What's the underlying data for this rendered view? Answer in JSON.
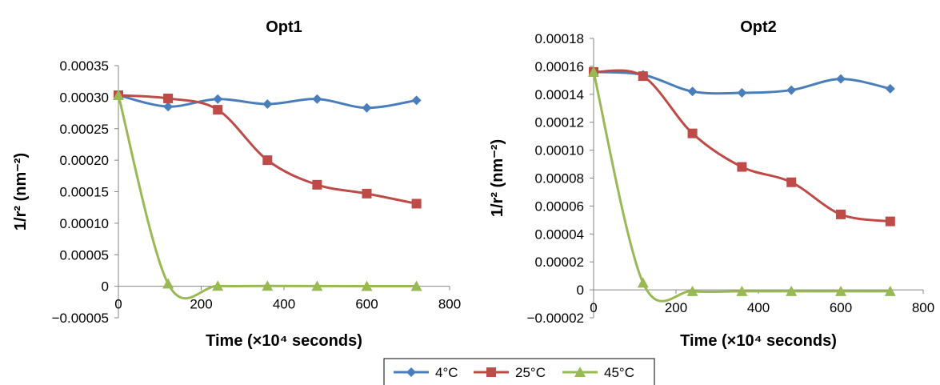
{
  "legend": [
    {
      "label": "4°C",
      "color": "#4a7ebb",
      "marker": "diamond"
    },
    {
      "label": "25°C",
      "color": "#be4b48",
      "marker": "square"
    },
    {
      "label": "45°C",
      "color": "#98b954",
      "marker": "triangle"
    }
  ],
  "chart_data": [
    {
      "type": "line",
      "title": "Opt1",
      "ylabel_main": "1/r² (nm⁻²)",
      "xlabel": "Time (×10⁴ seconds)",
      "xlim": [
        0,
        800
      ],
      "ylim": [
        -5e-05,
        0.00035
      ],
      "xticks": [
        "0",
        "200",
        "400",
        "600",
        "800"
      ],
      "yticks": [
        "−0.00005",
        "0",
        "0.00005",
        "0.00010",
        "0.00015",
        "0.00020",
        "0.00025",
        "0.00030",
        "0.00035"
      ],
      "x": [
        0,
        120,
        240,
        360,
        480,
        600,
        720
      ],
      "series": [
        {
          "name": "4°C",
          "values": [
            0.000303,
            0.000285,
            0.000297,
            0.000289,
            0.000297,
            0.000283,
            0.000295
          ]
        },
        {
          "name": "25°C",
          "values": [
            0.000303,
            0.000298,
            0.00028,
            0.0002,
            0.000161,
            0.000147,
            0.000131
          ]
        },
        {
          "name": "45°C",
          "values": [
            0.000303,
            4e-06,
            5e-07,
            4e-07,
            3e-07,
            2e-07,
            2e-07
          ]
        }
      ]
    },
    {
      "type": "line",
      "title": "Opt2",
      "ylabel_main": "1/r² (nm⁻²)",
      "xlabel": "Time (×10⁴ seconds)",
      "xlim": [
        0,
        800
      ],
      "ylim": [
        -2e-05,
        0.00018
      ],
      "xticks": [
        "0",
        "200",
        "400",
        "600",
        "800"
      ],
      "yticks": [
        "−0.00002",
        "0",
        "0.00002",
        "0.00004",
        "0.00006",
        "0.00008",
        "0.00010",
        "0.00012",
        "0.00014",
        "0.00016",
        "0.00018"
      ],
      "x": [
        0,
        120,
        240,
        360,
        480,
        600,
        720
      ],
      "series": [
        {
          "name": "4°C",
          "values": [
            0.000156,
            0.000154,
            0.000142,
            0.000141,
            0.000143,
            0.000151,
            0.000144
          ]
        },
        {
          "name": "25°C",
          "values": [
            0.000156,
            0.000153,
            0.000112,
            8.8e-05,
            7.7e-05,
            5.4e-05,
            4.9e-05
          ]
        },
        {
          "name": "45°C",
          "values": [
            0.000156,
            5e-06,
            -1e-06,
            -1e-06,
            -1e-06,
            -1e-06,
            -1e-06
          ]
        }
      ]
    }
  ]
}
